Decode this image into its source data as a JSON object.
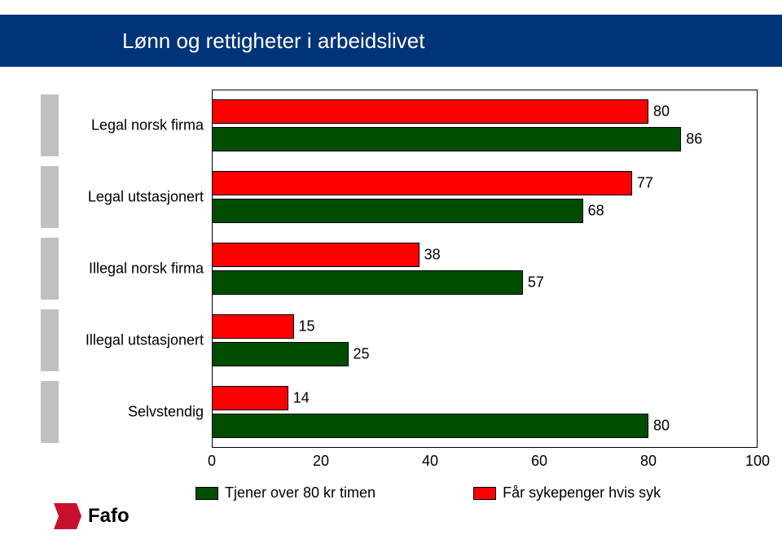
{
  "title": "Lønn og rettigheter i arbeidslivet",
  "chart": {
    "type": "bar",
    "xlim": [
      0,
      100
    ],
    "xtick_step": 20,
    "xticks": [
      0,
      20,
      40,
      60,
      80,
      100
    ],
    "categories": [
      "Legal norsk firma",
      "Legal utstasjonert",
      "Illegal norsk firma",
      "Illegal utstasjonert",
      "Selvstendig"
    ],
    "series": [
      {
        "name": "Får sykepenger hvis syk",
        "color": "#ff0000",
        "values": [
          80,
          77,
          38,
          15,
          14
        ]
      },
      {
        "name": "Tjener over 80 kr timen",
        "color": "#004d00",
        "values": [
          86,
          68,
          57,
          25,
          80
        ]
      }
    ],
    "background_color": "#ffffff",
    "border_color": "#000000",
    "label_fontsize": 18,
    "category_stub_color": "#c0c0c0"
  },
  "legend_order": [
    "Tjener over 80 kr timen",
    "Får sykepenger hvis syk"
  ],
  "logo": {
    "text": "Fafo",
    "icon_fill": "#c8102e"
  }
}
